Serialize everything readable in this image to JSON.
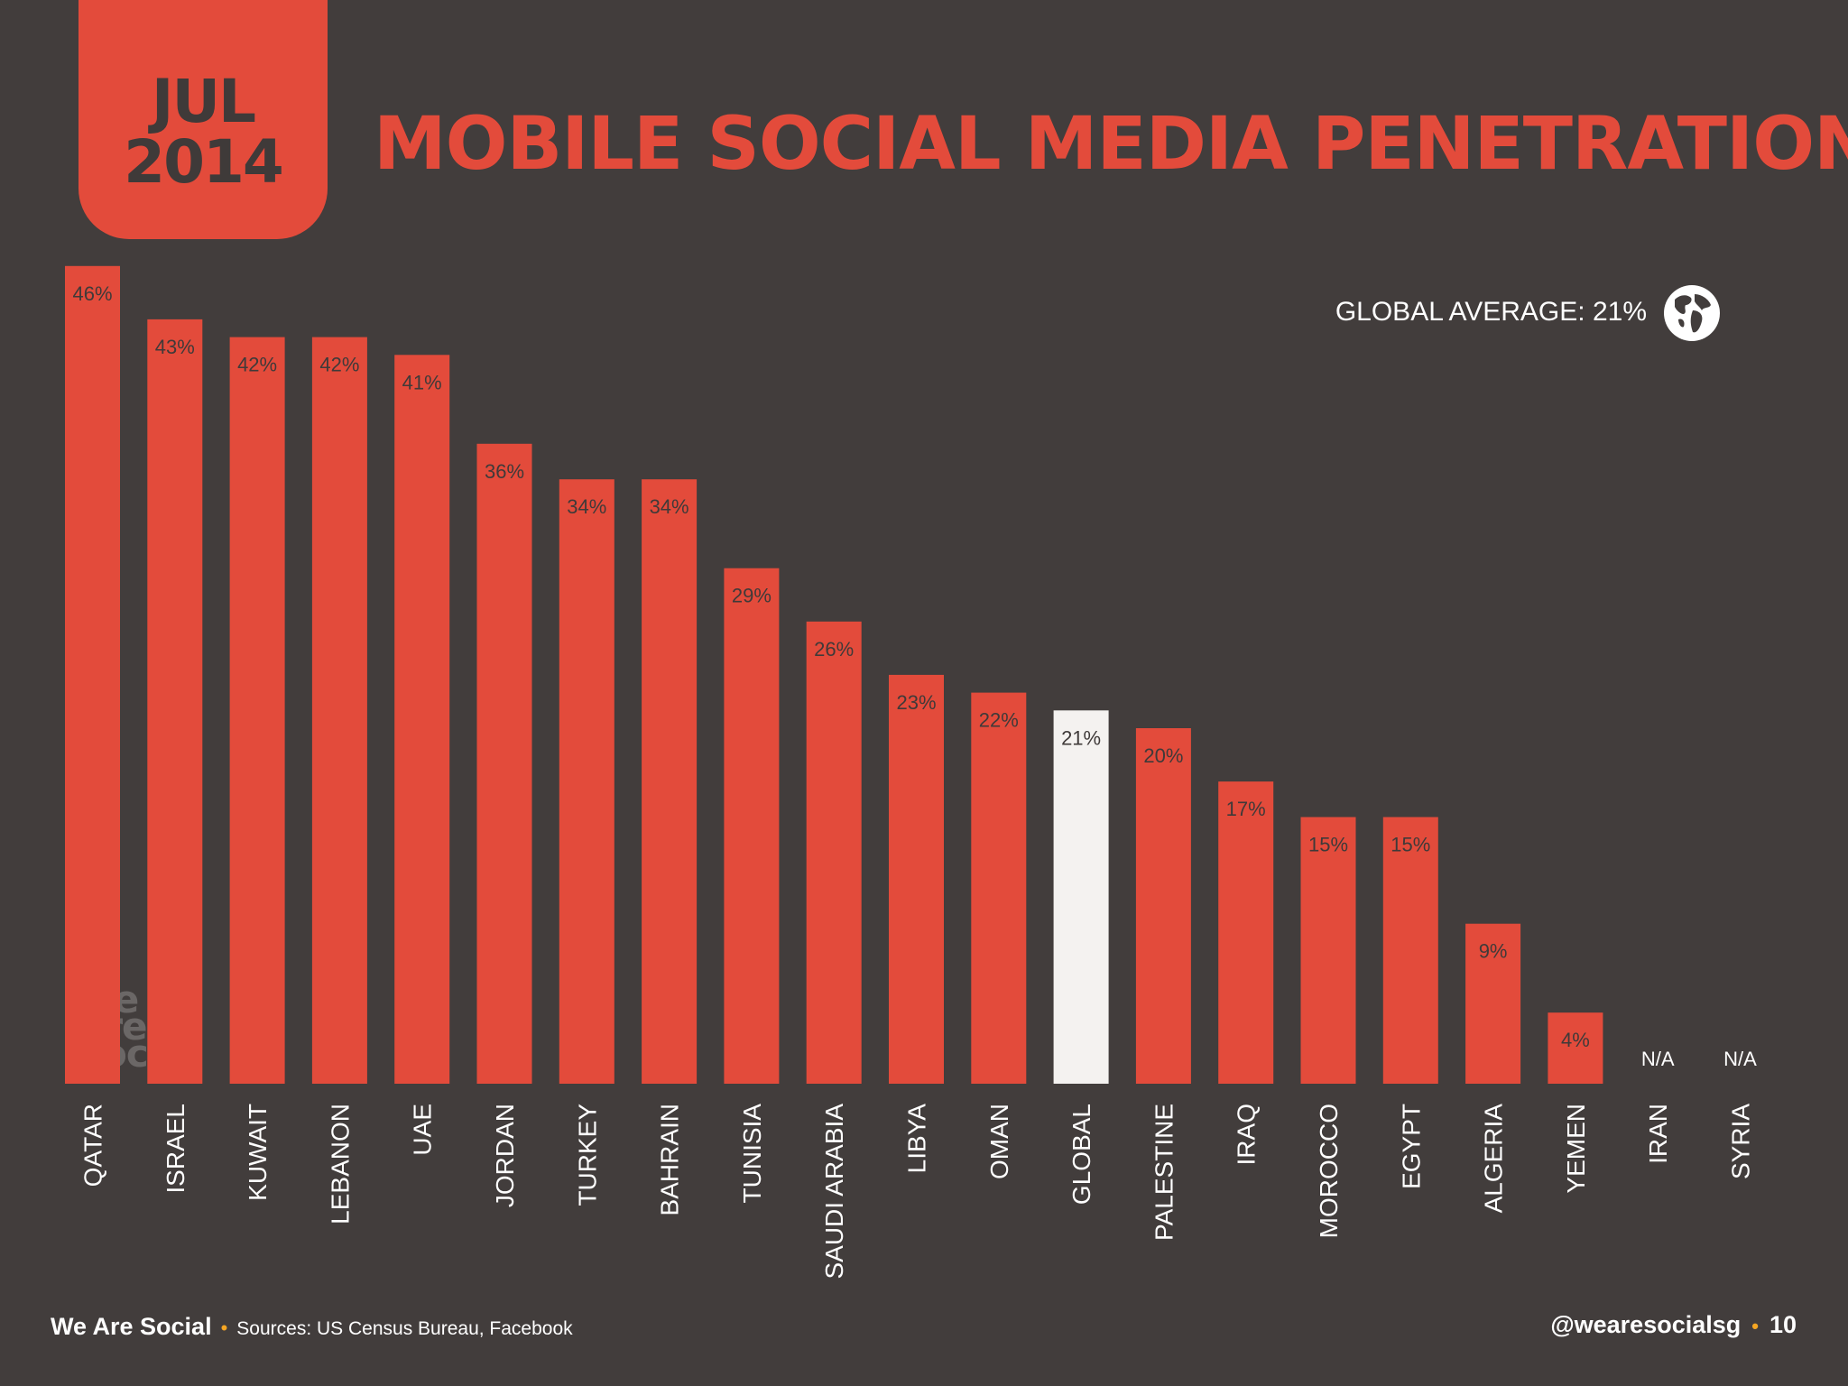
{
  "badge": {
    "month": "JUL",
    "year": "2014"
  },
  "title": "MOBILE SOCIAL MEDIA PENETRATION",
  "global_average_label": "GLOBAL AVERAGE: 21%",
  "icons": {
    "globe": "globe-icon"
  },
  "watermark": [
    "we",
    "are",
    "social"
  ],
  "colors": {
    "background": "#423d3c",
    "bar": "#e34b3b",
    "highlight_bar": "#f4f2f0",
    "accent_dot": "#f5a623"
  },
  "footer": {
    "brand": "We Are Social",
    "sources": "Sources: US Census Bureau, Facebook",
    "handle": "@wearesocialsg",
    "page_number": "10"
  },
  "chart_data": {
    "type": "bar",
    "title": "MOBILE SOCIAL MEDIA PENETRATION",
    "categories": [
      "QATAR",
      "ISRAEL",
      "KUWAIT",
      "LEBANON",
      "UAE",
      "JORDAN",
      "TURKEY",
      "BAHRAIN",
      "TUNISIA",
      "SAUDI ARABIA",
      "LIBYA",
      "OMAN",
      "GLOBAL",
      "PALESTINE",
      "IRAQ",
      "MOROCCO",
      "EGYPT",
      "ALGERIA",
      "YEMEN",
      "IRAN",
      "SYRIA"
    ],
    "values": [
      46,
      43,
      42,
      42,
      41,
      36,
      34,
      34,
      29,
      26,
      23,
      22,
      21,
      20,
      17,
      15,
      15,
      9,
      4,
      null,
      null
    ],
    "labels": [
      "46%",
      "43%",
      "42%",
      "42%",
      "41%",
      "36%",
      "34%",
      "34%",
      "29%",
      "26%",
      "23%",
      "22%",
      "21%",
      "20%",
      "17%",
      "15%",
      "15%",
      "9%",
      "4%",
      "N/A",
      "N/A"
    ],
    "highlight": "GLOBAL",
    "unit": "%",
    "grid": false,
    "legend": "none"
  }
}
